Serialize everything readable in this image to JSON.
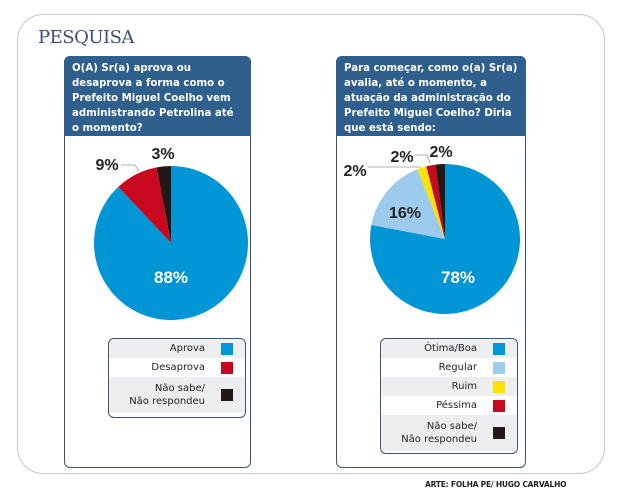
{
  "header": {
    "title": "PESQUISA"
  },
  "credit": "ARTE: FOLHA PE/ HUGO CARVALHO",
  "colors": {
    "panel_header": "#2f5f8c",
    "blue": "#0096d6",
    "light_blue": "#9ccbee",
    "yellow": "#ffe100",
    "red": "#c8081e",
    "black": "#231815"
  },
  "chart_data": [
    {
      "type": "pie",
      "title": "O(A) Sr(a) aprova ou desaprova a forma como o Prefeito Miguel Coelho vem administrando Petrolina até o momento?",
      "categories": [
        "Aprova",
        "Desaprova",
        "Não sabe/ Não respondeu"
      ],
      "values": [
        88,
        9,
        3
      ],
      "labels": [
        "88%",
        "9%",
        "3%"
      ],
      "colors": [
        "#0096d6",
        "#c8081e",
        "#231815"
      ],
      "legend": [
        {
          "label": "Aprova",
          "color": "#0096d6"
        },
        {
          "label": "Desaprova",
          "color": "#c8081e"
        },
        {
          "label": "Não sabe/\nNão respondeu",
          "color": "#231815"
        }
      ],
      "legend_position": "bottom"
    },
    {
      "type": "pie",
      "title": "Para começar, como o(a) Sr(a) avalia, até o momento, a atuação da administração do Prefeito Miguel Coelho? Diria que está sendo:",
      "categories": [
        "Ótima/Boa",
        "Regular",
        "Ruim",
        "Péssima",
        "Não sabe/ Não respondeu"
      ],
      "values": [
        78,
        16,
        2,
        2,
        2
      ],
      "labels": [
        "78%",
        "16%",
        "2%",
        "2%",
        "2%"
      ],
      "colors": [
        "#0096d6",
        "#9ccbee",
        "#ffe100",
        "#c8081e",
        "#231815"
      ],
      "legend": [
        {
          "label": "Ótima/Boa",
          "color": "#0096d6"
        },
        {
          "label": "Regular",
          "color": "#9ccbee"
        },
        {
          "label": "Ruim",
          "color": "#ffe100"
        },
        {
          "label": "Péssima",
          "color": "#c8081e"
        },
        {
          "label": "Não sabe/\nNão respondeu",
          "color": "#231815"
        }
      ],
      "legend_position": "bottom"
    }
  ]
}
